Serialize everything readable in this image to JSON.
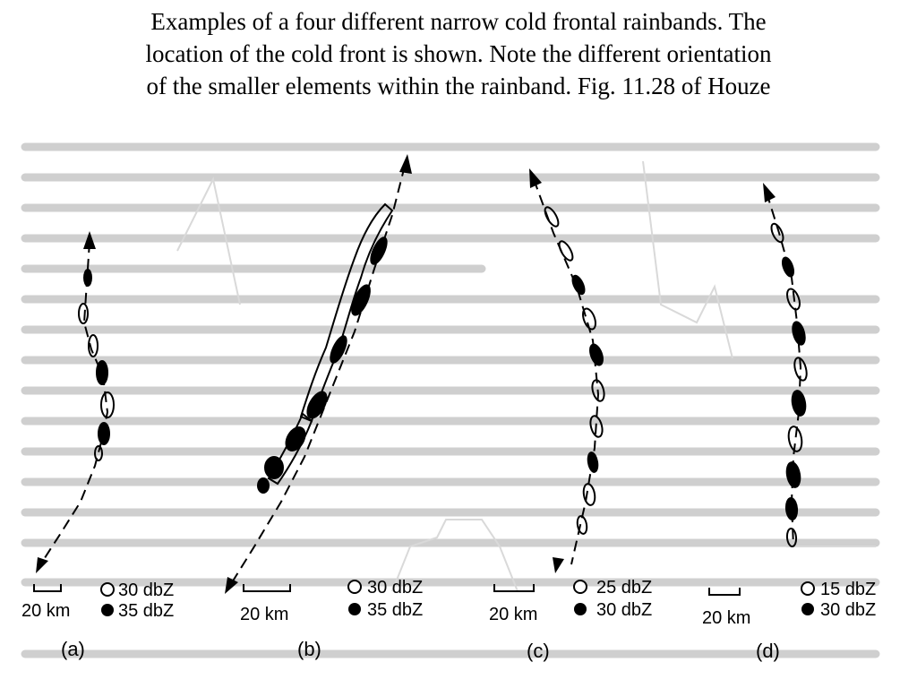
{
  "caption": {
    "line1": "Examples of a four different narrow cold frontal rainbands.  The",
    "line2": "location of the cold front is shown.  Note the different orientation",
    "line3": "of the smaller elements within the rainband.  Fig. 11.28 of Houze"
  },
  "panels": [
    {
      "letter": "(a)",
      "scale": "20 km",
      "open_level": "30 dbZ",
      "filled_level": "35 dbZ"
    },
    {
      "letter": "(b)",
      "scale": "20 km",
      "open_level": "30 dbZ",
      "filled_level": "35 dbZ"
    },
    {
      "letter": "(c)",
      "scale": "20 km",
      "open_level": "25 dbZ",
      "filled_level": "30 dbZ"
    },
    {
      "letter": "(d)",
      "scale": "20 km",
      "open_level": "15 dbZ",
      "filled_level": "30 dbZ"
    }
  ],
  "colors": {
    "ink": "#000000",
    "paper": "#ffffff",
    "ghost_text": "#c8c8c8"
  }
}
